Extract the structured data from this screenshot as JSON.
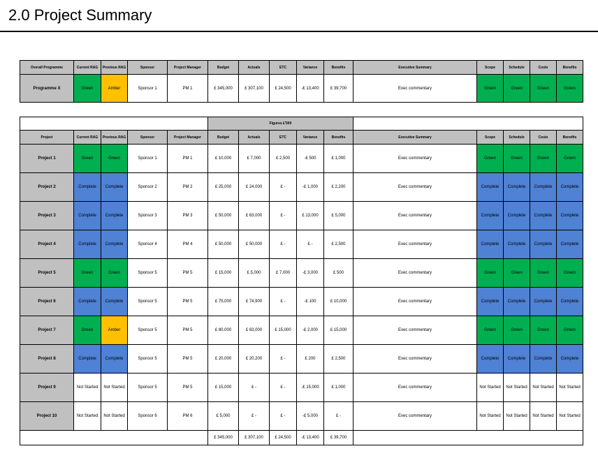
{
  "page": {
    "title": "2.0 Project Summary"
  },
  "programme": {
    "headers": [
      "Overall Programme",
      "Current RAG",
      "Previous RAG",
      "Sponsor",
      "Project Manager",
      "Budget",
      "Actuals",
      "ETC",
      "Variance",
      "Benefits",
      "Executive Summary",
      "Scope",
      "Schedule",
      "Costs",
      "Benefits"
    ],
    "row": {
      "name": "Programme X",
      "current_rag": "Green",
      "previous_rag": "Amber",
      "sponsor": "Sponsor 1",
      "pm": "PM 1",
      "budget": "£  345,000",
      "actuals": "£  307,100",
      "etc": "£ 24,500",
      "variance": "-£ 13,400",
      "benefits": "£   39,700",
      "summary": "Exec commentary",
      "scope": "Green",
      "schedule": "Green",
      "costs": "Green",
      "benefits_rag": "Green"
    }
  },
  "projects": {
    "figures_label": "Figures £'000",
    "headers": [
      "Project",
      "Current RAG",
      "Previous RAG",
      "Sponsor",
      "Project Manager",
      "Budget",
      "Actuals",
      "ETC",
      "Variance",
      "Benefits",
      "Executive Summary",
      "Scope",
      "Schedule",
      "Costs",
      "Benefits"
    ],
    "rows": [
      {
        "name": "Project 1",
        "cur": "Green",
        "prev": "Green",
        "sponsor": "Sponsor 1",
        "pm": "PM 1",
        "budget": "£   10,000",
        "actuals": "£     7,000",
        "etc": "£   2,500",
        "variance": "-£     500",
        "benefits": "£     1,000",
        "summary": "Exec commentary",
        "scope": "Green",
        "schedule": "Green",
        "costs": "Green",
        "benefits_rag": "Green"
      },
      {
        "name": "Project 2",
        "cur": "Complete",
        "prev": "Complete",
        "sponsor": "Sponsor 2",
        "pm": "PM 2",
        "budget": "£   25,000",
        "actuals": "£   24,000",
        "etc": "£        -",
        "variance": "-£  1,000",
        "benefits": "£     2,200",
        "summary": "Exec commentary",
        "scope": "Complete",
        "schedule": "Complete",
        "costs": "Complete",
        "benefits_rag": "Complete"
      },
      {
        "name": "Project 3",
        "cur": "Complete",
        "prev": "Complete",
        "sponsor": "Sponsor 3",
        "pm": "PM 3",
        "budget": "£   50,000",
        "actuals": "£   63,000",
        "etc": "£        -",
        "variance": "£ 13,000",
        "benefits": "£     5,000",
        "summary": "Exec commentary",
        "scope": "Complete",
        "schedule": "Complete",
        "costs": "Complete",
        "benefits_rag": "Complete"
      },
      {
        "name": "Project 4",
        "cur": "Complete",
        "prev": "Complete",
        "sponsor": "Sponsor 4",
        "pm": "PM 4",
        "budget": "£   50,000",
        "actuals": "£   50,000",
        "etc": "£        -",
        "variance": "£        -",
        "benefits": "£     2,500",
        "summary": "Exec commentary",
        "scope": "Complete",
        "schedule": "Complete",
        "costs": "Complete",
        "benefits_rag": "Complete"
      },
      {
        "name": "Project 5",
        "cur": "Green",
        "prev": "Green",
        "sponsor": "Sponsor 5",
        "pm": "PM 5",
        "budget": "£   15,000",
        "actuals": "£     5,000",
        "etc": "£   7,000",
        "variance": "-£  3,000",
        "benefits": "£       500",
        "summary": "Exec commentary",
        "scope": "Green",
        "schedule": "Green",
        "costs": "Green",
        "benefits_rag": "Green"
      },
      {
        "name": "Project 6",
        "cur": "Complete",
        "prev": "Complete",
        "sponsor": "Sponsor 5",
        "pm": "PM 5",
        "budget": "£   75,000",
        "actuals": "£   74,900",
        "etc": "£        -",
        "variance": "-£     100",
        "benefits": "£   10,000",
        "summary": "Exec commentary",
        "scope": "Complete",
        "schedule": "Complete",
        "costs": "Complete",
        "benefits_rag": "Complete"
      },
      {
        "name": "Project 7",
        "cur": "Green",
        "prev": "Amber",
        "sponsor": "Sponsor 5",
        "pm": "PM 5",
        "budget": "£   80,000",
        "actuals": "£   63,000",
        "etc": "£ 15,000",
        "variance": "-£  2,000",
        "benefits": "£   15,000",
        "summary": "Exec commentary",
        "scope": "Green",
        "schedule": "Green",
        "costs": "Green",
        "benefits_rag": "Green"
      },
      {
        "name": "Project 8",
        "cur": "Complete",
        "prev": "Complete",
        "sponsor": "Sponsor 5",
        "pm": "PM 5",
        "budget": "£   20,000",
        "actuals": "£   20,200",
        "etc": "£        -",
        "variance": "£     200",
        "benefits": "£     2,500",
        "summary": "Exec commentary",
        "scope": "Complete",
        "schedule": "Complete",
        "costs": "Complete",
        "benefits_rag": "Complete"
      },
      {
        "name": "Project 9",
        "cur": "Not Started",
        "prev": "Not Started",
        "sponsor": "Sponsor 5",
        "pm": "PM 5",
        "budget": "£   15,000",
        "actuals": "£          -",
        "etc": "£        -",
        "variance": "-£ 15,000",
        "benefits": "£     1,000",
        "summary": "Exec commentary",
        "scope": "Not Started",
        "schedule": "Not Started",
        "costs": "Not Started",
        "benefits_rag": "Not Started"
      },
      {
        "name": "Project 10",
        "cur": "Not Started",
        "prev": "Not Started",
        "sponsor": "Sponsor 6",
        "pm": "PM 6",
        "budget": "£     5,000",
        "actuals": "£          -",
        "etc": "£        -",
        "variance": "-£  5,000",
        "benefits": "£          -",
        "summary": "Exec commentary",
        "scope": "Not Started",
        "schedule": "Not Started",
        "costs": "Not Started",
        "benefits_rag": "Not Started"
      }
    ],
    "totals": {
      "budget": "£  345,000",
      "actuals": "£  307,100",
      "etc": "£ 24,500",
      "variance": "-£ 13,400",
      "benefits": "£   39,700"
    }
  },
  "colors": {
    "Green": "#00b050",
    "Amber": "#ffc000",
    "Complete": "#4f81d4",
    "Not Started": "#ffffff",
    "header_grey": "#c0c0c0"
  }
}
